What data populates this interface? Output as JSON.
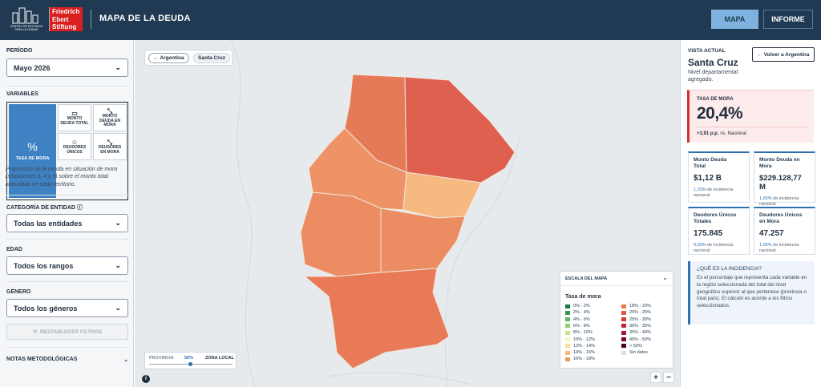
{
  "header": {
    "logo_text": "CENTRO DE ESTUDIOS PARA LA CIUDAD",
    "brand": [
      "Friedrich",
      "Ebert",
      "Stiftung"
    ],
    "title": "MAPA DE LA DEUDA",
    "nav": [
      "MAPA",
      "INFORME"
    ]
  },
  "sidebar": {
    "period_label": "PERÍODO",
    "period_value": "Mayo 2026",
    "variables_label": "VARIABLES",
    "tiles": [
      {
        "icon": "%",
        "label": "TASA DE MORA"
      },
      {
        "label": "MONTO DEUDA TOTAL"
      },
      {
        "label": "MONTO DEUDA EN MORA"
      },
      {
        "label": "DEUDORES ÚNICOS"
      },
      {
        "label": "DEUDORES EN MORA"
      }
    ],
    "description": "Proporción de la deuda en situación de mora (situaciones 3, 4 y 5) sobre el monto total adeudado en cada territorio.",
    "filters": [
      {
        "label": "CATEGORÍA DE ENTIDAD",
        "value": "Todas las entidades"
      },
      {
        "label": "EDAD",
        "value": "Todos los rangos"
      },
      {
        "label": "GÉNERO",
        "value": "Todos los géneros"
      }
    ],
    "reset": "RESTABLECER FILTROS",
    "notes": "NOTAS METODOLÓGICAS"
  },
  "map": {
    "breadcrumb": [
      "Argentina",
      "Santa Cruz"
    ],
    "slider": {
      "left": "PROVINCIA",
      "value": "50%",
      "right": "ZONA LOCAL"
    },
    "legend": {
      "title": "ESCALA DEL MAPA",
      "subtitle": "Tasa de mora",
      "items": [
        {
          "label": "0% - 2%",
          "color": "#1b7a3b"
        },
        {
          "label": "2% - 4%",
          "color": "#2f9a4a"
        },
        {
          "label": "4% - 6%",
          "color": "#5cb85c"
        },
        {
          "label": "6% - 8%",
          "color": "#8fd16a"
        },
        {
          "label": "8% - 10%",
          "color": "#c6e88a"
        },
        {
          "label": "10% - 12%",
          "color": "#f6f5c6"
        },
        {
          "label": "12% - 14%",
          "color": "#f8dca0"
        },
        {
          "label": "14% - 16%",
          "color": "#f5b97a"
        },
        {
          "label": "16% - 18%",
          "color": "#f09a5a"
        },
        {
          "label": "18% - 20%",
          "color": "#e87a4a"
        },
        {
          "label": "20% - 25%",
          "color": "#e05a40"
        },
        {
          "label": "25% - 30%",
          "color": "#d43a3a"
        },
        {
          "label": "30% - 35%",
          "color": "#c02838"
        },
        {
          "label": "35% - 40%",
          "color": "#a0183a"
        },
        {
          "label": "40% - 50%",
          "color": "#7a0a2a"
        },
        {
          "label": "> 50%",
          "color": "#4a0018"
        },
        {
          "label": "Sin datos",
          "color": "#dddddd"
        }
      ]
    },
    "zoom": [
      "+",
      "−"
    ],
    "info": "i"
  },
  "panel": {
    "view_label": "VISTA ACTUAL",
    "region": "Santa Cruz",
    "level": "Nivel departamental agregado.",
    "back": "← Volver a Argentina",
    "main": {
      "label": "TASA DE MORA",
      "value": "20,4%",
      "delta": "+3,91 p.p.",
      "delta_suffix": "vs. Nacional"
    },
    "cards": [
      {
        "title": "Monto Deuda Total",
        "value": "$1,12 B",
        "pct": "1,33%",
        "suffix": "de incidencia nacional"
      },
      {
        "title": "Monto Deuda en Mora",
        "value": "$229.128,77 M",
        "pct": "1,65%",
        "suffix": "de incidencia nacional"
      },
      {
        "title": "Deudores Únicos Totales",
        "value": "175.845",
        "pct": "0,93%",
        "suffix": "de incidencia nacional"
      },
      {
        "title": "Deudores Únicos en Mora",
        "value": "47.257",
        "pct": "1,05%",
        "suffix": "de incidencia nacional"
      }
    ],
    "info_title": "¿QUÉ ES LA INCIDENCIA?",
    "info_text": "Es el porcentaje que representa cada variable en la región seleccionada del total del nivel geográfico superior al que pertenece (provincia o total país). El cálculo es acorde a los filtros seleccionados."
  }
}
